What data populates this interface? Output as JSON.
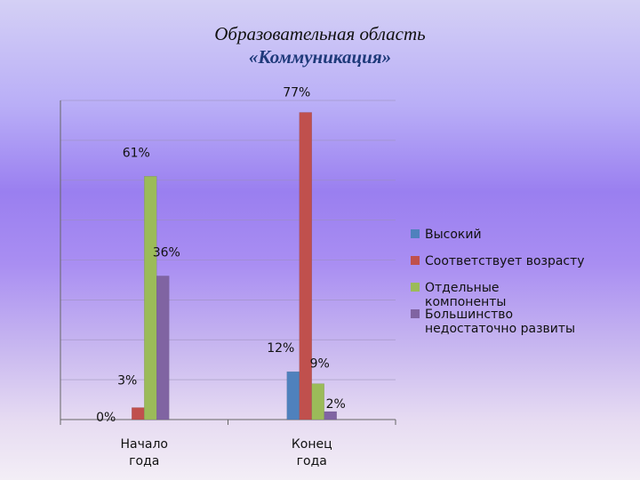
{
  "chart_data": {
    "type": "bar",
    "title": "Образовательная область",
    "subtitle": "«Коммуникация»",
    "categories": [
      "Начало года",
      "Конец года"
    ],
    "category_lines": [
      [
        "Начало",
        "года"
      ],
      [
        "Конец",
        "года"
      ]
    ],
    "series": [
      {
        "name": "Высокий",
        "color": "#4f81bd",
        "values": [
          0,
          12
        ],
        "labels": [
          "0%",
          "12%"
        ]
      },
      {
        "name": "Соответствует возрасту",
        "color": "#c0504d",
        "values": [
          3,
          77
        ],
        "labels": [
          "3%",
          "77%"
        ]
      },
      {
        "name": "Отдельные компоненты",
        "color": "#9bbb59",
        "values": [
          61,
          9
        ],
        "labels": [
          "61%",
          "9%"
        ]
      },
      {
        "name": "Большинство недостаточно развиты",
        "color": "#8064a2",
        "values": [
          36,
          2
        ],
        "labels": [
          "36%",
          "2%"
        ]
      }
    ],
    "legend_lines": [
      [
        "Высокий"
      ],
      [
        "Соответствует возрасту"
      ],
      [
        "Отдельные",
        "компоненты"
      ],
      [
        "Большинство",
        "недостаточно развиты"
      ]
    ],
    "ylim": [
      0,
      80
    ],
    "grid": true,
    "legend_position": "right"
  }
}
